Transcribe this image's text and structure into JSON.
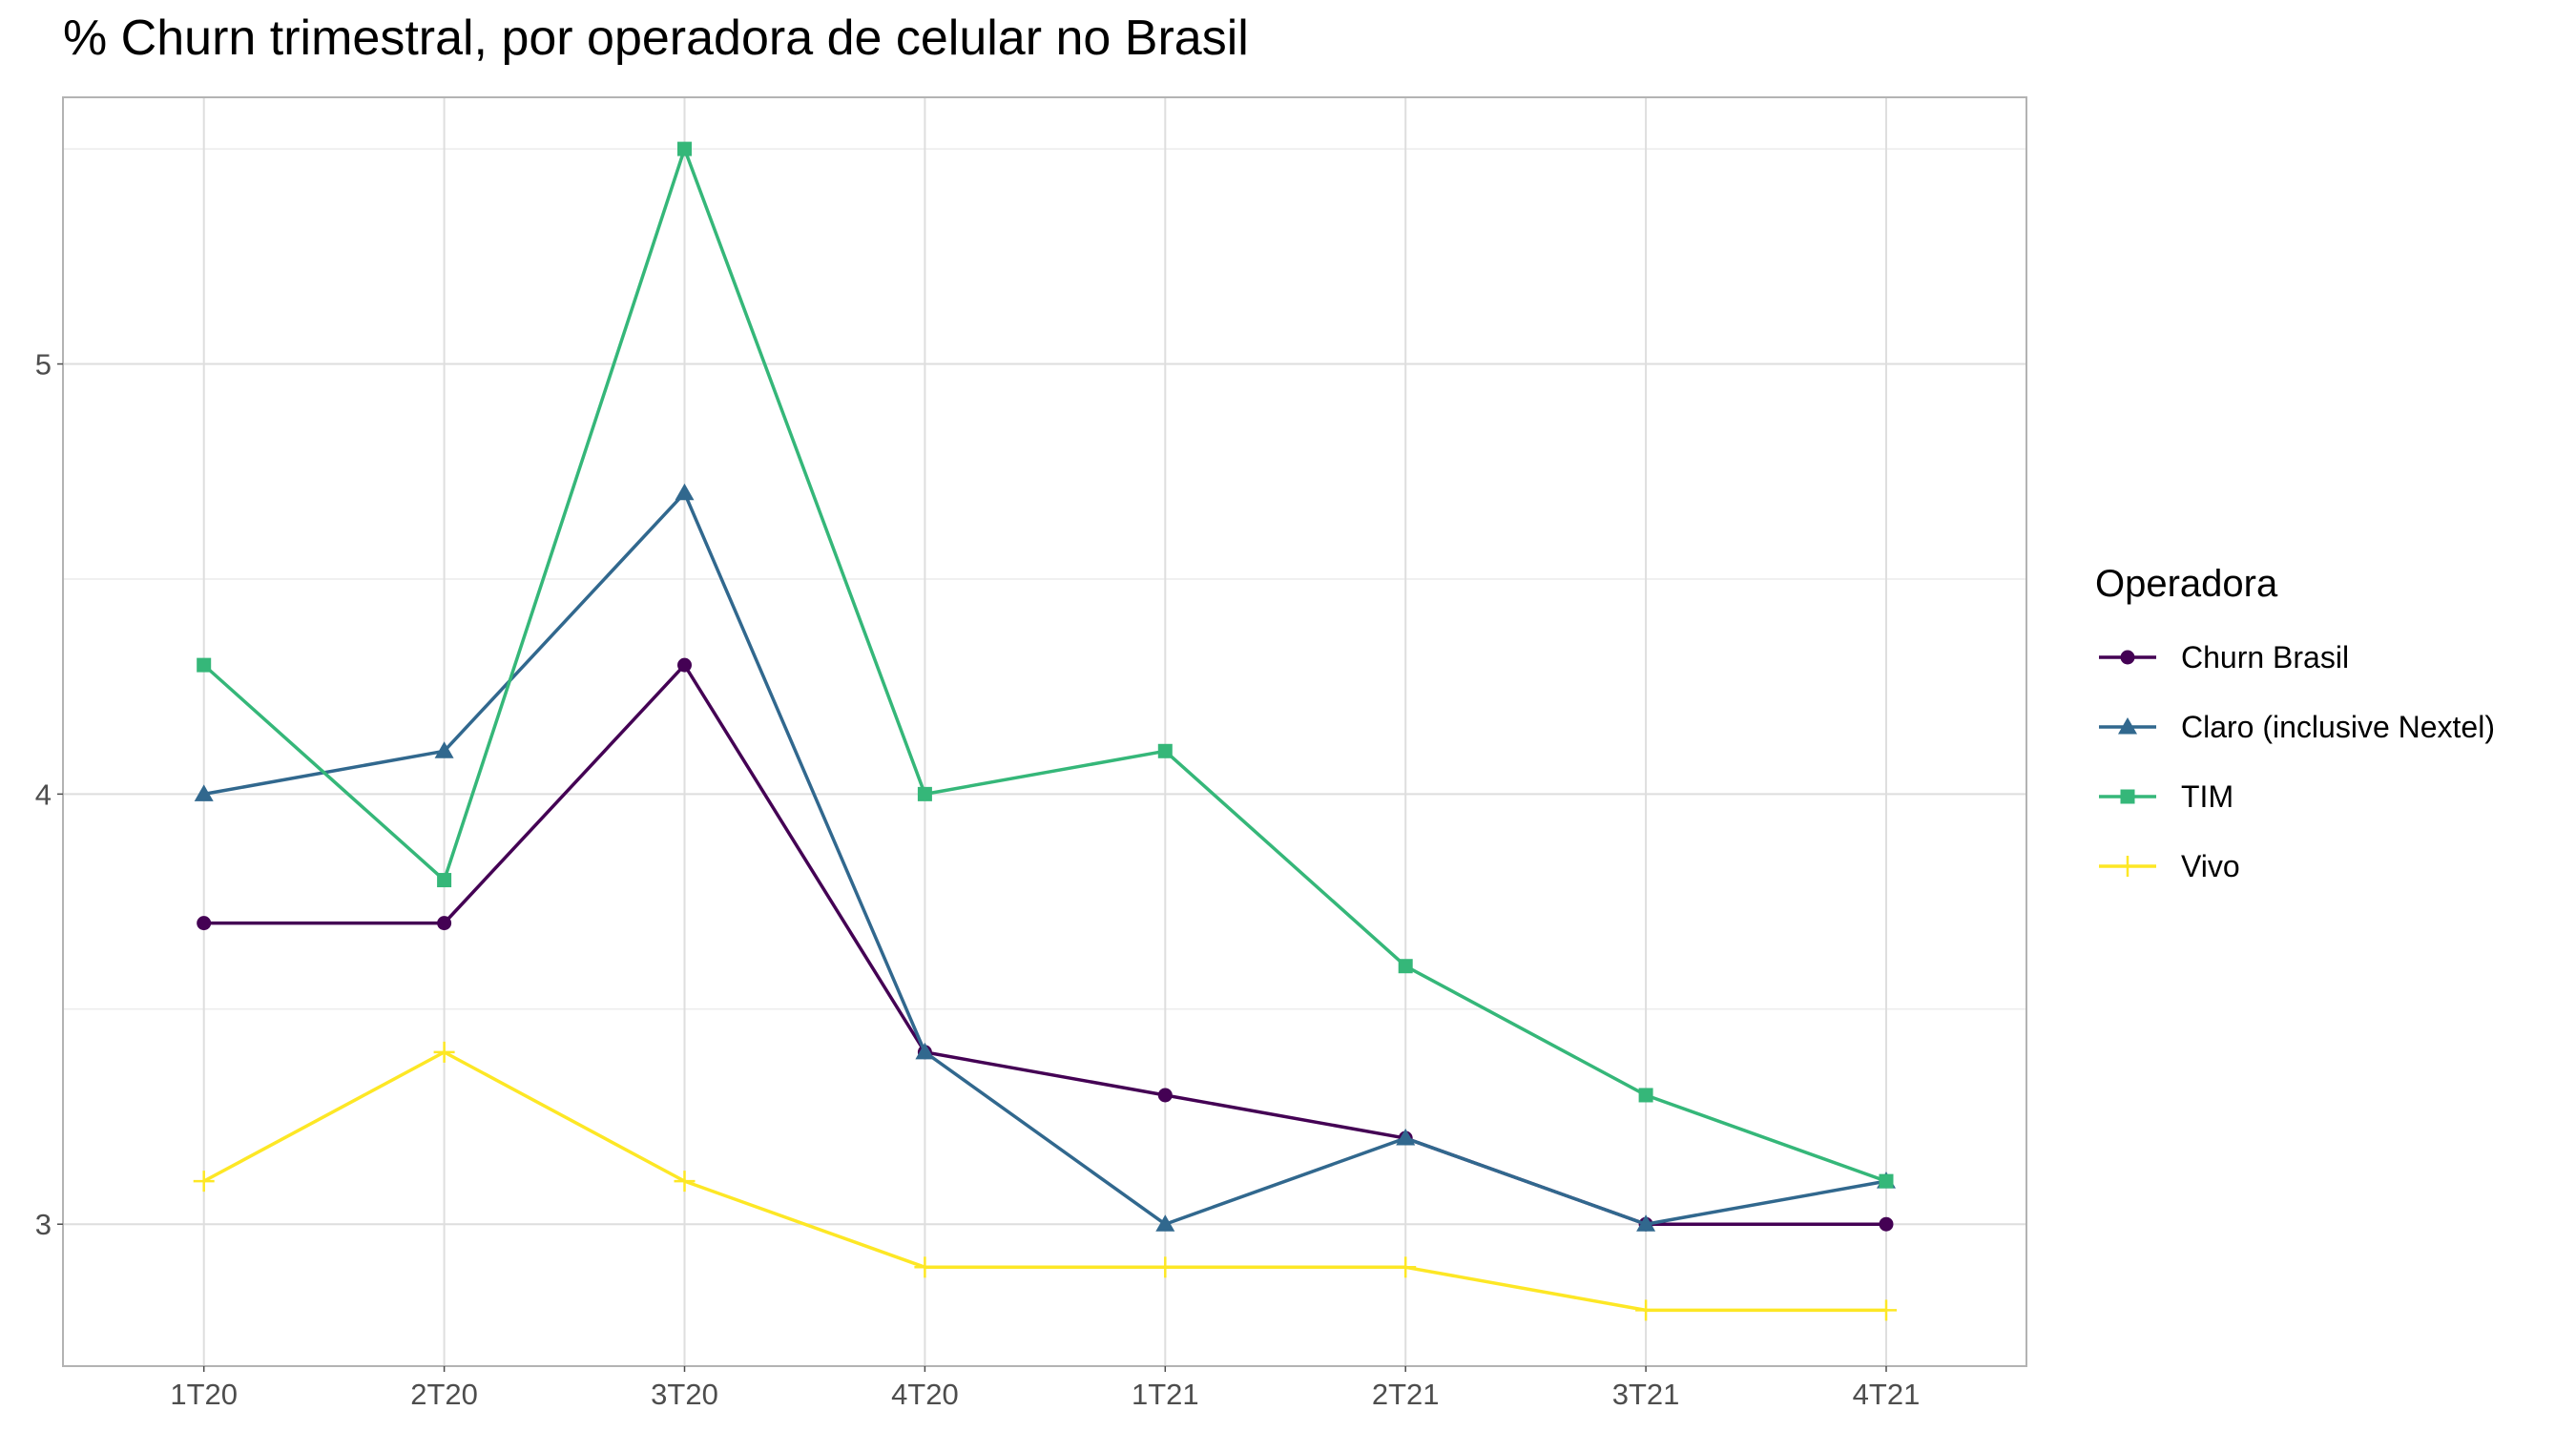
{
  "chart_data": {
    "type": "line",
    "title": "% Churn trimestral, por operadora de celular no Brasil",
    "xlabel": "",
    "ylabel": "",
    "categories": [
      "1T20",
      "2T20",
      "3T20",
      "4T20",
      "1T21",
      "2T21",
      "3T21",
      "4T21"
    ],
    "ylim": [
      2.67,
      5.62
    ],
    "yticks": [
      3,
      4,
      5
    ],
    "grid": true,
    "legend": {
      "title": "Operadora",
      "placement": "right"
    },
    "series": [
      {
        "name": "Churn Brasil",
        "color": "#440154",
        "marker": "circle",
        "values": [
          3.7,
          3.7,
          4.3,
          3.4,
          3.3,
          3.2,
          3.0,
          3.0
        ]
      },
      {
        "name": "Claro (inclusive Nextel)",
        "color": "#31688e",
        "marker": "triangle",
        "values": [
          4.0,
          4.1,
          4.7,
          3.4,
          3.0,
          3.2,
          3.0,
          3.1
        ]
      },
      {
        "name": "TIM",
        "color": "#35b779",
        "marker": "square",
        "values": [
          4.3,
          3.8,
          5.5,
          4.0,
          4.1,
          3.6,
          3.3,
          3.1
        ]
      },
      {
        "name": "Vivo",
        "color": "#fde725",
        "marker": "plus",
        "values": [
          3.1,
          3.4,
          3.1,
          2.9,
          2.9,
          2.9,
          2.8,
          2.8
        ]
      }
    ]
  }
}
